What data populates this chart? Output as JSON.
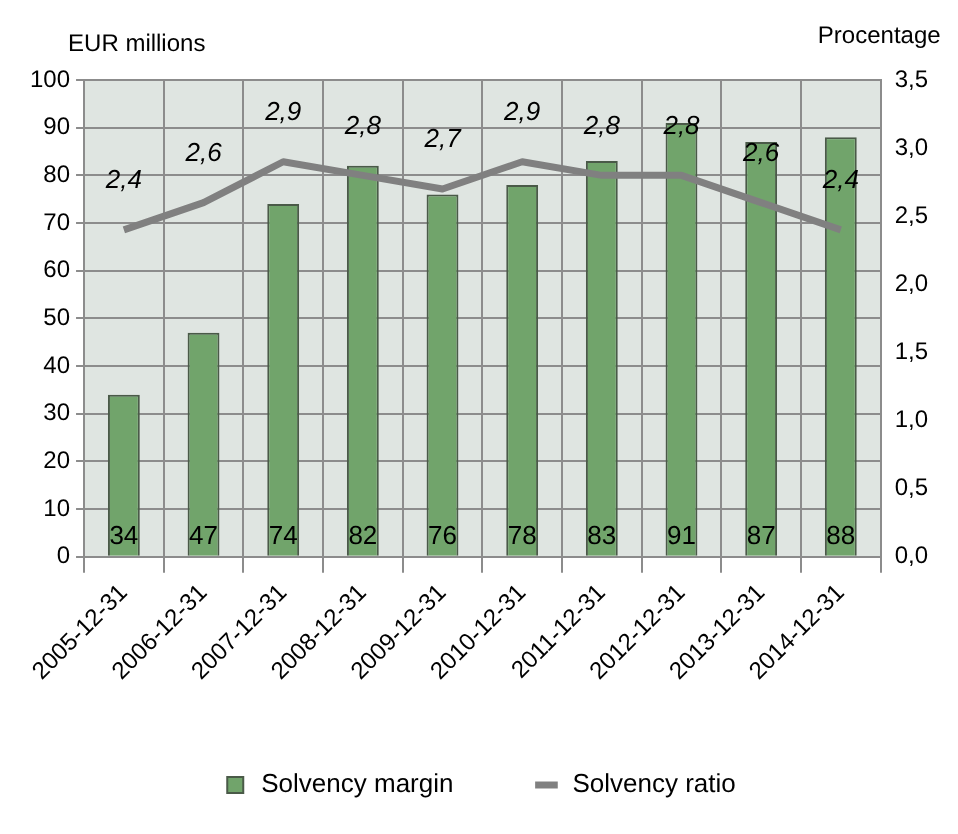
{
  "chart_data": {
    "type": "bar",
    "ylabel": "EUR millions",
    "y2label": "Procentage",
    "categories": [
      "2005-12-31",
      "2006-12-31",
      "2007-12-31",
      "2008-12-31",
      "2009-12-31",
      "2010-12-31",
      "2011-12-31",
      "2012-12-31",
      "2013-12-31",
      "2014-12-31"
    ],
    "series": [
      {
        "name": "Solvency margin",
        "color": "#71a46b",
        "values": [
          34,
          47,
          74,
          82,
          76,
          78,
          83,
          91,
          87,
          88
        ],
        "value_labels": [
          "34",
          "47",
          "74",
          "82",
          "76",
          "78",
          "83",
          "91",
          "87",
          "88"
        ]
      },
      {
        "name": "Solvency ratio",
        "type": "line",
        "axis": "y2",
        "color": "#808080",
        "values": [
          2.4,
          2.6,
          2.9,
          2.8,
          2.7,
          2.9,
          2.8,
          2.8,
          2.6,
          2.4
        ],
        "value_labels": [
          "2,4",
          "2,6",
          "2,9",
          "2,8",
          "2,7",
          "2,9",
          "2,8",
          "2,8",
          "2,6",
          "2,4"
        ]
      }
    ],
    "ylim": [
      0,
      100
    ],
    "yticks": [
      0,
      10,
      20,
      30,
      40,
      50,
      60,
      70,
      80,
      90,
      100
    ],
    "y2lim": [
      0,
      3.5
    ],
    "y2ticks": [
      {
        "value": 0,
        "label": "0,0"
      },
      {
        "value": 0.5,
        "label": "0,5"
      },
      {
        "value": 1,
        "label": "1,0"
      },
      {
        "value": 1.5,
        "label": "1,5"
      },
      {
        "value": 2,
        "label": "2,0"
      },
      {
        "value": 2.5,
        "label": "2,5"
      },
      {
        "value": 3,
        "label": "3,0"
      },
      {
        "value": 3.5,
        "label": "3,5"
      }
    ],
    "grid": true,
    "legend": "bottom",
    "marker": "none",
    "line_style": "solid"
  }
}
